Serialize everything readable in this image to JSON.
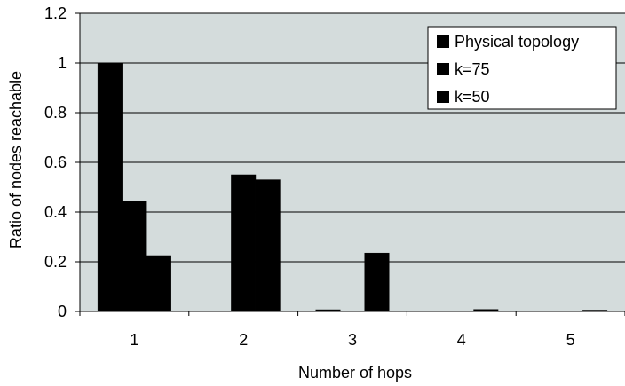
{
  "chart_data": {
    "type": "bar",
    "title": "",
    "xlabel": "Number of hops",
    "ylabel": "Ratio of nodes reachable",
    "categories": [
      "1",
      "2",
      "3",
      "4",
      "5"
    ],
    "ylim": [
      0,
      1.2
    ],
    "yticks": [
      "0",
      "0.2",
      "0.4",
      "0.6",
      "0.8",
      "1",
      "1.2"
    ],
    "grid": true,
    "legend_position": "top-right",
    "plot_background": "#d4dcdc",
    "bar_color": "#000000",
    "series": [
      {
        "name": "Physical topology",
        "values": [
          1.0,
          0.0,
          0.007,
          0.0,
          0.0
        ]
      },
      {
        "name": "k=75",
        "values": [
          0.445,
          0.55,
          0.0,
          0.0,
          0.0
        ]
      },
      {
        "name": "k=50",
        "values": [
          0.225,
          0.53,
          0.235,
          0.008,
          0.0025
        ]
      }
    ]
  }
}
